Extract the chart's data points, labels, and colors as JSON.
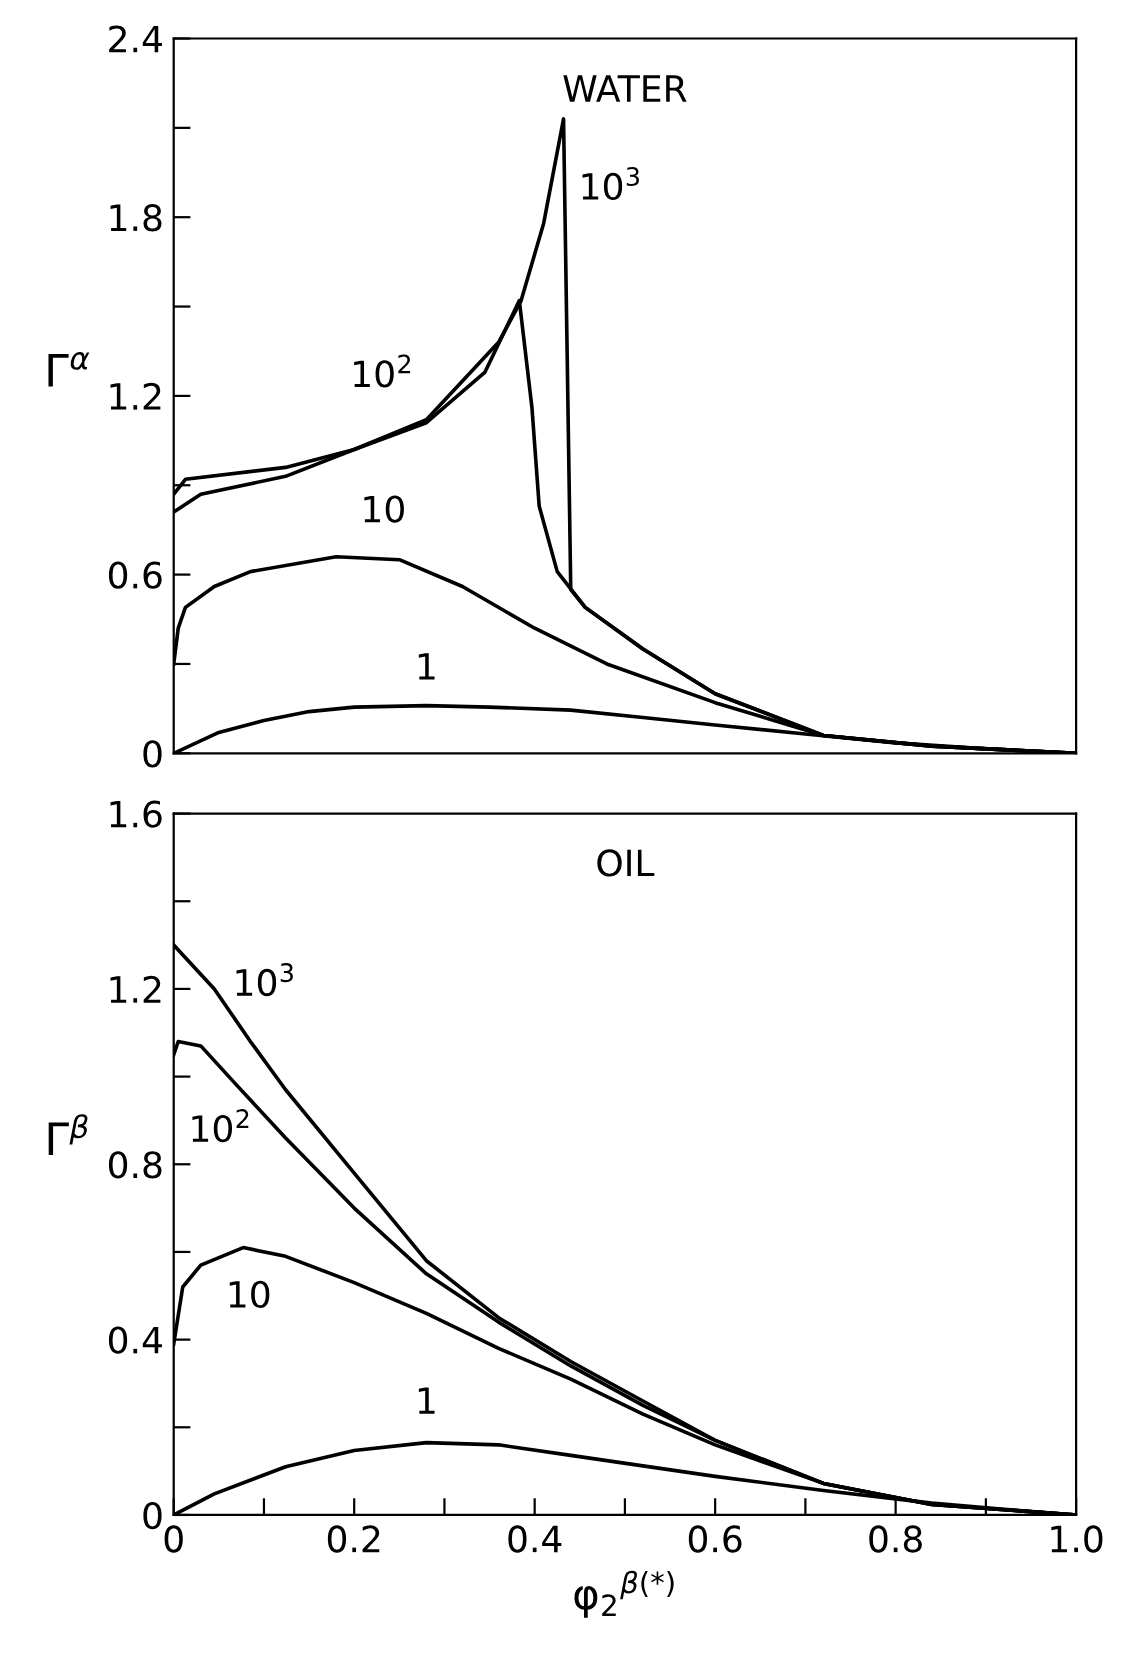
{
  "chart_data": [
    {
      "type": "line",
      "title": "WATER",
      "ylabel": "Γ$^{α}$",
      "xlim": [
        0,
        1
      ],
      "ylim": [
        0,
        2.4
      ],
      "yticks": [
        0,
        {
          "value": 0.3,
          "label": null
        },
        0.6,
        {
          "value": 0.9,
          "label": null
        },
        1.2,
        {
          "value": 1.5,
          "label": null
        },
        1.8,
        {
          "value": 2.1,
          "label": null
        },
        2.4
      ],
      "tick_labels": "y",
      "grid": false,
      "legend": false,
      "annotations": [
        {
          "text": "1",
          "x": 0.28,
          "y": 0.16
        },
        {
          "text": "10",
          "x": 0.18,
          "y": 0.66
        },
        {
          "text": "10$^{2}$",
          "x": 0.2,
          "y": 1.02
        },
        {
          "text": "10$^{3}$",
          "x": 0.41,
          "y": 1.78
        }
      ],
      "series": [
        {
          "color": "#000000",
          "x": [
            0,
            0.05,
            0.1,
            0.15,
            0.2,
            0.28,
            0.35,
            0.44,
            0.52,
            0.6,
            0.7,
            0.8,
            0.9,
            1.0
          ],
          "values": [
            0,
            0.07,
            0.11,
            0.14,
            0.155,
            0.16,
            0.155,
            0.145,
            0.12,
            0.095,
            0.065,
            0.035,
            0.015,
            0
          ]
        },
        {
          "color": "#000000",
          "x": [
            0,
            0.005,
            0.013,
            0.045,
            0.085,
            0.18,
            0.25,
            0.32,
            0.4,
            0.48,
            0.6,
            0.72,
            0.84,
            1.0
          ],
          "values": [
            0.3,
            0.42,
            0.49,
            0.56,
            0.61,
            0.66,
            0.65,
            0.56,
            0.42,
            0.3,
            0.17,
            0.06,
            0.024,
            0
          ]
        },
        {
          "color": "#000000",
          "x": [
            0,
            0.03,
            0.124,
            0.2,
            0.28,
            0.345,
            0.383,
            0.397,
            0.405,
            0.425,
            0.456,
            0.52,
            0.6,
            0.72,
            0.84,
            1.0
          ],
          "values": [
            0.81,
            0.87,
            0.93,
            1.02,
            1.11,
            1.28,
            1.52,
            1.16,
            0.83,
            0.61,
            0.49,
            0.35,
            0.2,
            0.06,
            0.024,
            0
          ]
        },
        {
          "color": "#000000",
          "x": [
            0,
            0.013,
            0.124,
            0.2,
            0.28,
            0.36,
            0.385,
            0.41,
            0.432,
            0.44,
            0.456,
            0.52,
            0.6,
            0.72,
            0.84,
            1.0
          ],
          "values": [
            0.87,
            0.92,
            0.96,
            1.02,
            1.12,
            1.38,
            1.52,
            1.78,
            2.13,
            0.55,
            0.49,
            0.35,
            0.2,
            0.06,
            0.024,
            0
          ]
        }
      ]
    },
    {
      "type": "line",
      "title": "OIL",
      "ylabel": "Γ$^{β}$",
      "xlabel": "φ$_{2}$$^{β(*)}$",
      "xlim": [
        0,
        1
      ],
      "ylim": [
        0,
        1.6
      ],
      "xticks": [
        0,
        {
          "value": 0.1,
          "label": null
        },
        0.2,
        {
          "value": 0.3,
          "label": null
        },
        0.4,
        {
          "value": 0.5,
          "label": null
        },
        0.6,
        {
          "value": 0.7,
          "label": null
        },
        0.8,
        {
          "value": 0.9,
          "label": null
        },
        {
          "value": 1.0,
          "label": "1.0"
        }
      ],
      "yticks": [
        0,
        {
          "value": 0.2,
          "label": null
        },
        0.4,
        {
          "value": 0.6,
          "label": null
        },
        0.8,
        {
          "value": 1.0,
          "label": null
        },
        1.2,
        {
          "value": 1.4,
          "label": null
        },
        1.6
      ],
      "grid": false,
      "legend": false,
      "annotations": [
        {
          "text": "1",
          "x": 0.28,
          "y": 0.165
        },
        {
          "text": "10",
          "x": 0.077,
          "y": 0.61
        },
        {
          "text": "10$^{2}$",
          "x": 0.03,
          "y": 1.07
        },
        {
          "text": "10$^{3}$",
          "x": 0.085,
          "y": 1.08
        }
      ],
      "series": [
        {
          "color": "#000000",
          "x": [
            0,
            0.045,
            0.124,
            0.2,
            0.28,
            0.36,
            0.44,
            0.6,
            0.72,
            0.84,
            0.92,
            1.0
          ],
          "values": [
            0,
            0.048,
            0.11,
            0.147,
            0.165,
            0.16,
            0.136,
            0.088,
            0.056,
            0.027,
            0.013,
            0
          ]
        },
        {
          "color": "#000000",
          "x": [
            0,
            0.01,
            0.03,
            0.077,
            0.124,
            0.2,
            0.28,
            0.36,
            0.44,
            0.52,
            0.6,
            0.72,
            0.84,
            1.0
          ],
          "values": [
            0.39,
            0.52,
            0.57,
            0.61,
            0.59,
            0.53,
            0.46,
            0.38,
            0.31,
            0.23,
            0.16,
            0.072,
            0.024,
            0
          ]
        },
        {
          "color": "#000000",
          "x": [
            0,
            0.005,
            0.03,
            0.07,
            0.124,
            0.2,
            0.28,
            0.36,
            0.44,
            0.52,
            0.6,
            0.72,
            0.84,
            1.0
          ],
          "values": [
            1.05,
            1.08,
            1.07,
            0.98,
            0.86,
            0.7,
            0.55,
            0.44,
            0.34,
            0.25,
            0.17,
            0.072,
            0.024,
            0
          ]
        },
        {
          "color": "#000000",
          "x": [
            0,
            0.045,
            0.085,
            0.124,
            0.2,
            0.28,
            0.36,
            0.44,
            0.52,
            0.6,
            0.72,
            0.84,
            1.0
          ],
          "values": [
            1.3,
            1.2,
            1.08,
            0.97,
            0.78,
            0.58,
            0.45,
            0.35,
            0.26,
            0.17,
            0.072,
            0.024,
            0
          ]
        }
      ]
    }
  ]
}
